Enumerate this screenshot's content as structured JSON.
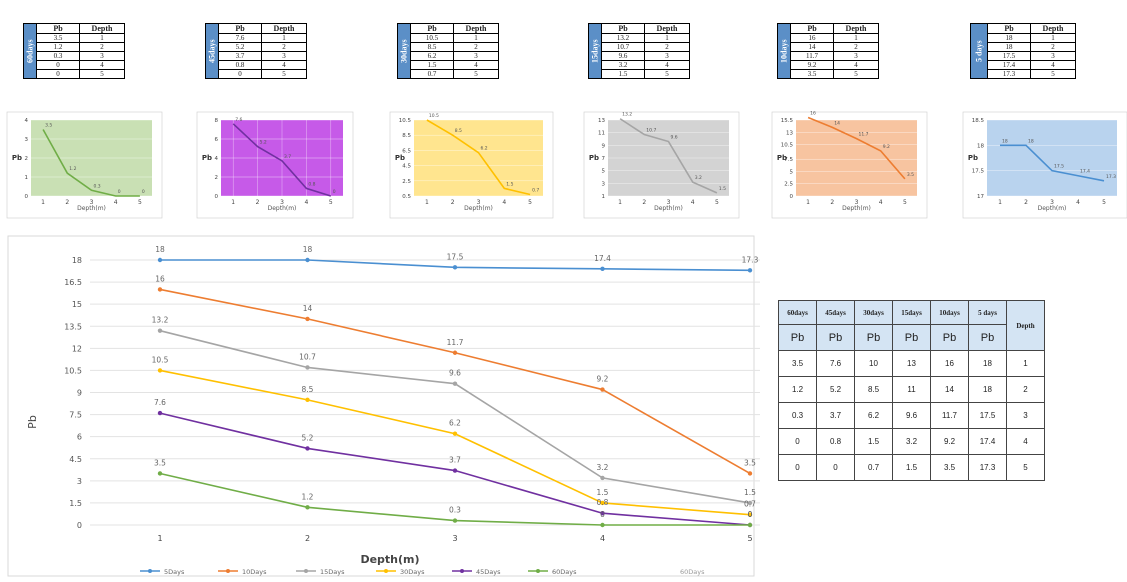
{
  "mini_tables": [
    {
      "col_pb": "Pb",
      "col_depth": "Depth",
      "side_label": "60days",
      "rows": [
        [
          "3.5",
          "1"
        ],
        [
          "1.2",
          "2"
        ],
        [
          "0.3",
          "3"
        ],
        [
          "0",
          "4"
        ],
        [
          "0",
          "5"
        ]
      ]
    },
    {
      "col_pb": "Pb",
      "col_depth": "Depth",
      "side_label": "45days",
      "rows": [
        [
          "7.6",
          "1"
        ],
        [
          "5.2",
          "2"
        ],
        [
          "3.7",
          "3"
        ],
        [
          "0.8",
          "4"
        ],
        [
          "0",
          "5"
        ]
      ]
    },
    {
      "col_pb": "Pb",
      "col_depth": "Depth",
      "side_label": "30days",
      "rows": [
        [
          "10.5",
          "1"
        ],
        [
          "8.5",
          "2"
        ],
        [
          "6.2",
          "3"
        ],
        [
          "1.5",
          "4"
        ],
        [
          "0.7",
          "5"
        ]
      ]
    },
    {
      "col_pb": "Pb",
      "col_depth": "Depth",
      "side_label": "15days",
      "rows": [
        [
          "13.2",
          "1"
        ],
        [
          "10.7",
          "2"
        ],
        [
          "9.6",
          "3"
        ],
        [
          "3.2",
          "4"
        ],
        [
          "1.5",
          "5"
        ]
      ]
    },
    {
      "col_pb": "Pb",
      "col_depth": "Depth",
      "side_label": "10days",
      "rows": [
        [
          "16",
          "1"
        ],
        [
          "14",
          "2"
        ],
        [
          "11.7",
          "3"
        ],
        [
          "9.2",
          "4"
        ],
        [
          "3.5",
          "5"
        ]
      ]
    },
    {
      "col_pb": "Pb",
      "col_depth": "Depth",
      "side_label": "5 days",
      "rows": [
        [
          "18",
          "1"
        ],
        [
          "18",
          "2"
        ],
        [
          "17.5",
          "3"
        ],
        [
          "17.4",
          "4"
        ],
        [
          "17.3",
          "5"
        ]
      ]
    }
  ],
  "colors": {
    "5days": "#4a8fd1",
    "10days": "#ed7d31",
    "15days": "#a5a5a5",
    "30days": "#ffc000",
    "45days": "#7030a0",
    "60days": "#70ad47",
    "mini_bg_60": "#c9e0b4",
    "mini_bg_45": "#c65ae8",
    "mini_bg_30": "#ffe58f",
    "mini_bg_15": "#d3d3d3",
    "mini_bg_10": "#f7c4a0",
    "mini_bg_5": "#b9d3ee"
  },
  "chart_data": [
    {
      "type": "line",
      "x": [
        1,
        2,
        3,
        4,
        5
      ],
      "values": [
        3.5,
        1.2,
        0.3,
        0,
        0
      ],
      "xlabel": "Depth(m)",
      "ylabel": "Pb",
      "yticks": [
        "0",
        "1",
        "2",
        "3",
        "4"
      ]
    },
    {
      "type": "line",
      "x": [
        1,
        2,
        3,
        4,
        5
      ],
      "values": [
        7.6,
        5.2,
        3.7,
        0.8,
        0
      ],
      "xlabel": "Depth(m)",
      "ylabel": "Pb",
      "yticks": [
        "0",
        "2",
        "4",
        "6",
        "8"
      ]
    },
    {
      "type": "line",
      "x": [
        1,
        2,
        3,
        4,
        5
      ],
      "values": [
        10.5,
        8.5,
        6.2,
        1.5,
        0.7
      ],
      "xlabel": "Depth(m)",
      "ylabel": "Pb",
      "yticks": [
        "0.5",
        "2.5",
        "4.5",
        "6.5",
        "8.5",
        "10.5"
      ]
    },
    {
      "type": "line",
      "x": [
        1,
        2,
        3,
        4,
        5
      ],
      "values": [
        13.2,
        10.7,
        9.6,
        3.2,
        1.5
      ],
      "xlabel": "Depth(m)",
      "ylabel": "Pb",
      "yticks": [
        "1",
        "3",
        "5",
        "7",
        "9",
        "11",
        "13"
      ]
    },
    {
      "type": "line",
      "x": [
        1,
        2,
        3,
        4,
        5
      ],
      "values": [
        16,
        14,
        11.7,
        9.2,
        3.5
      ],
      "xlabel": "Depth(m)",
      "ylabel": "Pb",
      "yticks": [
        "0",
        "2.5",
        "5",
        "7.5",
        "10.5",
        "13",
        "15.5"
      ]
    },
    {
      "type": "line",
      "x": [
        1,
        2,
        3,
        4,
        5
      ],
      "values": [
        18,
        18,
        17.5,
        17.4,
        17.3
      ],
      "xlabel": "Depth(m)",
      "ylabel": "Pb",
      "yticks": [
        "17",
        "17.5",
        "18",
        "18.5"
      ]
    },
    {
      "type": "line",
      "x": [
        1,
        2,
        3,
        4,
        5
      ],
      "xlabel": "Depth(m)",
      "ylabel": "Pb",
      "ylim": [
        0,
        18
      ],
      "yticks": [
        "0",
        "1.5",
        "3",
        "4.5",
        "6",
        "7.5",
        "9",
        "10.5",
        "12",
        "13.5",
        "15",
        "16.5",
        "18"
      ],
      "legend_position": "bottom",
      "extra_legend": "60Days",
      "series": [
        {
          "name": "5Days",
          "key": "5days",
          "values": [
            18,
            18,
            17.5,
            17.4,
            17.3
          ]
        },
        {
          "name": "10Days",
          "key": "10days",
          "values": [
            16,
            14,
            11.7,
            9.2,
            3.5
          ]
        },
        {
          "name": "15Days",
          "key": "15days",
          "values": [
            13.2,
            10.7,
            9.6,
            3.2,
            1.5
          ]
        },
        {
          "name": "30Days",
          "key": "30days",
          "values": [
            10.5,
            8.5,
            6.2,
            1.5,
            0.7
          ]
        },
        {
          "name": "45Days",
          "key": "45days",
          "values": [
            7.6,
            5.2,
            3.7,
            0.8,
            0
          ]
        },
        {
          "name": "60Days",
          "key": "60days",
          "values": [
            3.5,
            1.2,
            0.3,
            0,
            0
          ]
        }
      ]
    }
  ],
  "summary_table": {
    "headers": [
      "60days",
      "45days",
      "30days",
      "15days",
      "10days",
      "5 days"
    ],
    "depth_header": "Depth",
    "unit": "Pb",
    "rows": [
      [
        "3.5",
        "7.6",
        "10",
        "13",
        "16",
        "18",
        "1"
      ],
      [
        "1.2",
        "5.2",
        "8.5",
        "11",
        "14",
        "18",
        "2"
      ],
      [
        "0.3",
        "3.7",
        "6.2",
        "9.6",
        "11.7",
        "17.5",
        "3"
      ],
      [
        "0",
        "0.8",
        "1.5",
        "3.2",
        "9.2",
        "17.4",
        "4"
      ],
      [
        "0",
        "0",
        "0.7",
        "1.5",
        "3.5",
        "17.3",
        "5"
      ]
    ]
  }
}
